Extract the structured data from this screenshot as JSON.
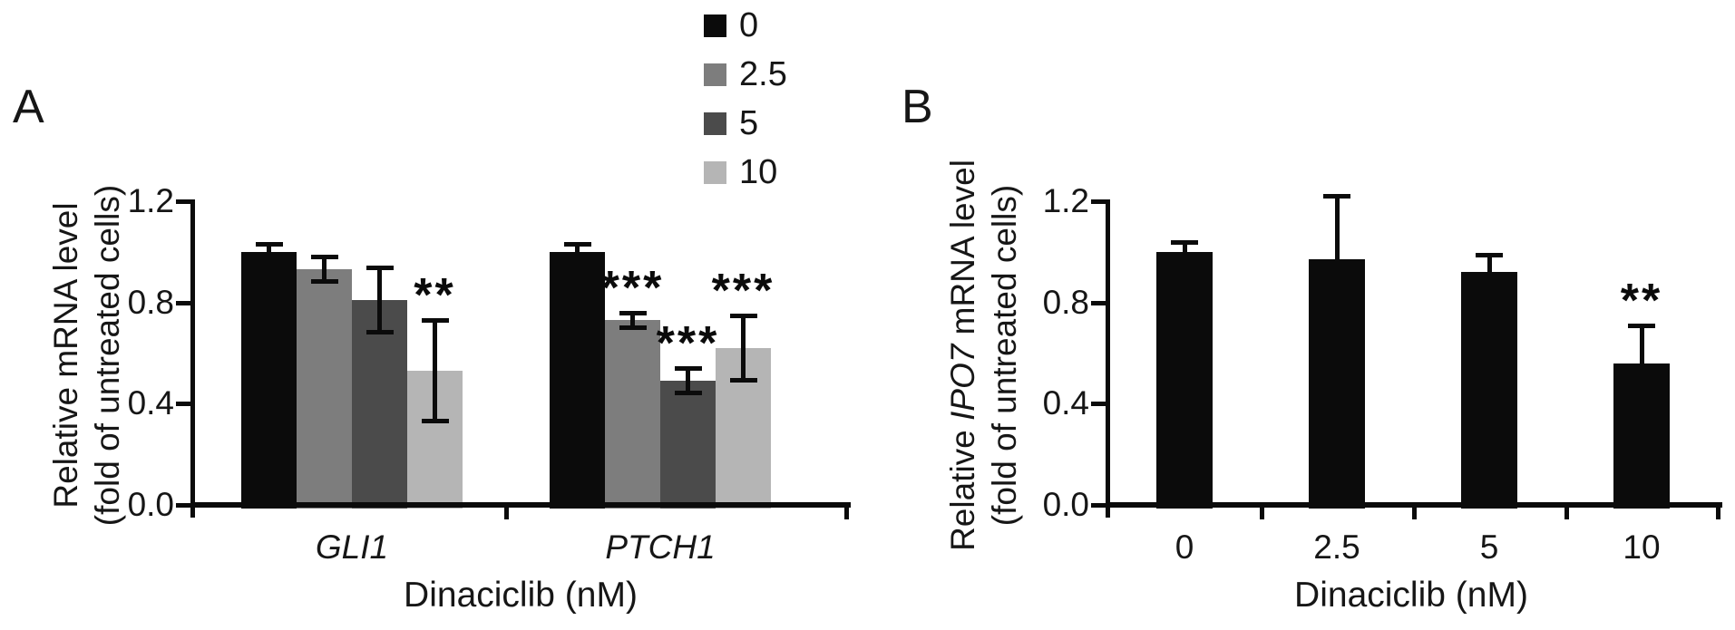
{
  "figure": {
    "panel_labels": {
      "a": "A",
      "b": "B"
    }
  },
  "legend": {
    "items": [
      {
        "label": "0",
        "color": "#0b0b0b"
      },
      {
        "label": "2.5",
        "color": "#7d7d7d"
      },
      {
        "label": "5",
        "color": "#4b4b4b"
      },
      {
        "label": "10",
        "color": "#b5b5b5"
      }
    ]
  },
  "chart_data": [
    {
      "type": "bar",
      "panel": "A",
      "title": "",
      "ylabel": {
        "pre": "Relative mRNA level",
        "italic": "",
        "post": "",
        "line2": "(fold of untreated cells)"
      },
      "xlabel": "Dinaciclib (nM)",
      "categories": [
        "GLI1",
        "PTCH1"
      ],
      "categories_italic": true,
      "yticks": [
        "1.2",
        "0.8",
        "0.4",
        "0.0"
      ],
      "ylim": [
        0,
        1.2
      ],
      "grid": false,
      "legend_position": "top-center",
      "error_style": "both",
      "series": [
        {
          "name": "0",
          "color": "#0b0b0b",
          "values": [
            1.0,
            1.0
          ],
          "errors": [
            0.03,
            0.03
          ],
          "sig": [
            "",
            ""
          ]
        },
        {
          "name": "2.5",
          "color": "#7d7d7d",
          "values": [
            0.93,
            0.73
          ],
          "errors": [
            0.05,
            0.03
          ],
          "sig": [
            "",
            "***"
          ]
        },
        {
          "name": "5",
          "color": "#4b4b4b",
          "values": [
            0.81,
            0.49
          ],
          "errors": [
            0.13,
            0.05
          ],
          "sig": [
            "",
            "***"
          ]
        },
        {
          "name": "10",
          "color": "#b5b5b5",
          "values": [
            0.53,
            0.62
          ],
          "errors": [
            0.2,
            0.13
          ],
          "sig": [
            "**",
            "***"
          ]
        }
      ]
    },
    {
      "type": "bar",
      "panel": "B",
      "title": "",
      "ylabel": {
        "pre": "Relative ",
        "italic": "IPO7",
        "post": " mRNA level",
        "line2": "(fold of untreated cells)"
      },
      "xlabel": "Dinaciclib (nM)",
      "categories": [
        "0",
        "2.5",
        "5",
        "10"
      ],
      "categories_italic": false,
      "yticks": [
        "1.2",
        "0.8",
        "0.4",
        "0.0"
      ],
      "ylim": [
        0,
        1.2
      ],
      "grid": false,
      "error_style": "upper",
      "series": [
        {
          "name": "IPO7 mRNA",
          "color": "#0b0b0b",
          "values": [
            1.0,
            0.97,
            0.92,
            0.56
          ],
          "errors": [
            0.04,
            0.25,
            0.07,
            0.15
          ],
          "sig": [
            "",
            "",
            "",
            "**"
          ]
        }
      ]
    }
  ]
}
